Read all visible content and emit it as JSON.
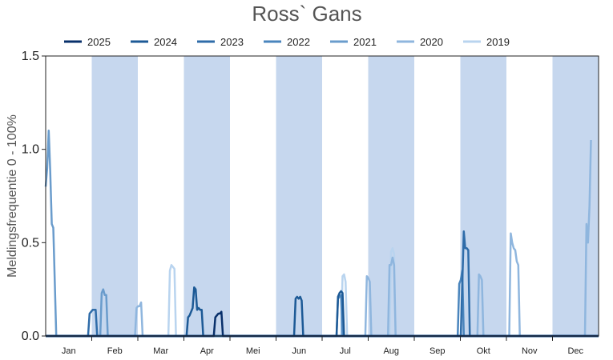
{
  "chart_data": {
    "type": "line",
    "title": "Ross` Gans",
    "ylabel": "Meldingsfrequentie 0 - 100%",
    "xlabel": "",
    "ylim": [
      0,
      1.5
    ],
    "yticks": [
      "0.0",
      "0.5",
      "1.0",
      "1.5"
    ],
    "months": [
      "Jan",
      "Feb",
      "Mar",
      "Apr",
      "Mei",
      "Jun",
      "Jul",
      "Aug",
      "Sep",
      "Okt",
      "Nov",
      "Dec"
    ],
    "shaded_months": [
      "Feb",
      "Apr",
      "Jun",
      "Aug",
      "Okt",
      "Dec"
    ],
    "shade_color": "#c6d7ee",
    "legend_position": "top",
    "grid": false,
    "series": [
      {
        "name": "2025",
        "color": "#08306b",
        "points": [
          [
            0,
            0
          ],
          [
            111,
            0
          ],
          [
            112,
            0.1
          ],
          [
            113,
            0.11
          ],
          [
            114,
            0.12
          ],
          [
            115,
            0.12
          ],
          [
            116,
            0.13
          ],
          [
            117,
            0.0
          ],
          [
            365,
            0
          ]
        ]
      },
      {
        "name": "2024",
        "color": "#1d5a96",
        "points": [
          [
            0,
            0
          ],
          [
            93,
            0
          ],
          [
            94,
            0.1
          ],
          [
            95,
            0.11
          ],
          [
            96,
            0.13
          ],
          [
            97,
            0.15
          ],
          [
            98,
            0.26
          ],
          [
            99,
            0.25
          ],
          [
            100,
            0.14
          ],
          [
            101,
            0.15
          ],
          [
            102,
            0.14
          ],
          [
            103,
            0.14
          ],
          [
            104,
            0.0
          ],
          [
            164,
            0
          ],
          [
            165,
            0.2
          ],
          [
            166,
            0.21
          ],
          [
            167,
            0.2
          ],
          [
            168,
            0.21
          ],
          [
            169,
            0.19
          ],
          [
            170,
            0.0
          ],
          [
            192,
            0
          ],
          [
            193,
            0.21
          ],
          [
            194,
            0.23
          ],
          [
            195,
            0.24
          ],
          [
            196,
            0.23
          ],
          [
            197,
            0.0
          ],
          [
            365,
            0
          ]
        ]
      },
      {
        "name": "2023",
        "color": "#2f6ca9",
        "points": [
          [
            0,
            0
          ],
          [
            28,
            0
          ],
          [
            29,
            0.12
          ],
          [
            30,
            0.13
          ],
          [
            31,
            0.14
          ],
          [
            32,
            0.14
          ],
          [
            33,
            0.14
          ],
          [
            34,
            0.0
          ],
          [
            274,
            0
          ],
          [
            275,
            0.28
          ],
          [
            276,
            0.56
          ],
          [
            277,
            0.47
          ],
          [
            278,
            0.47
          ],
          [
            279,
            0.46
          ],
          [
            280,
            0.0
          ],
          [
            365,
            0
          ]
        ]
      },
      {
        "name": "2022",
        "color": "#4a85bd",
        "points": [
          [
            0,
            0
          ],
          [
            192,
            0
          ],
          [
            193,
            0.2
          ],
          [
            194,
            0.21
          ],
          [
            195,
            0.22
          ],
          [
            196,
            0.0
          ],
          [
            272,
            0
          ],
          [
            273,
            0.28
          ],
          [
            274,
            0.3
          ],
          [
            275,
            0.35
          ],
          [
            276,
            0.0
          ],
          [
            365,
            0
          ]
        ]
      },
      {
        "name": "2021",
        "color": "#6a9ccc",
        "points": [
          [
            0,
            0.8
          ],
          [
            1,
            0.9
          ],
          [
            2,
            1.1
          ],
          [
            3,
            0.88
          ],
          [
            4,
            0.6
          ],
          [
            5,
            0.58
          ],
          [
            6,
            0.3
          ],
          [
            7,
            0.0
          ],
          [
            36,
            0
          ],
          [
            37,
            0.23
          ],
          [
            38,
            0.25
          ],
          [
            39,
            0.22
          ],
          [
            40,
            0.22
          ],
          [
            41,
            0.0
          ],
          [
            365,
            0
          ]
        ]
      },
      {
        "name": "2020",
        "color": "#8fb6de",
        "points": [
          [
            0,
            0
          ],
          [
            59,
            0
          ],
          [
            60,
            0.15
          ],
          [
            61,
            0.16
          ],
          [
            62,
            0.16
          ],
          [
            63,
            0.18
          ],
          [
            64,
            0.0
          ],
          [
            211,
            0
          ],
          [
            212,
            0.32
          ],
          [
            213,
            0.31
          ],
          [
            214,
            0.29
          ],
          [
            215,
            0.0
          ],
          [
            226,
            0
          ],
          [
            227,
            0.38
          ],
          [
            228,
            0.38
          ],
          [
            229,
            0.42
          ],
          [
            230,
            0.38
          ],
          [
            231,
            0.0
          ],
          [
            285,
            0
          ],
          [
            286,
            0.33
          ],
          [
            287,
            0.32
          ],
          [
            288,
            0.3
          ],
          [
            289,
            0.0
          ],
          [
            306,
            0
          ],
          [
            307,
            0.55
          ],
          [
            308,
            0.5
          ],
          [
            309,
            0.47
          ],
          [
            310,
            0.46
          ],
          [
            311,
            0.4
          ],
          [
            312,
            0.38
          ],
          [
            313,
            0.0
          ],
          [
            356,
            0
          ],
          [
            357,
            0.6
          ],
          [
            358,
            0.5
          ],
          [
            359,
            0.7
          ],
          [
            360,
            1.05
          ]
        ]
      },
      {
        "name": "2019",
        "color": "#b9d4ef",
        "points": [
          [
            0,
            0
          ],
          [
            81,
            0
          ],
          [
            82,
            0.35
          ],
          [
            83,
            0.38
          ],
          [
            84,
            0.37
          ],
          [
            85,
            0.36
          ],
          [
            86,
            0.0
          ],
          [
            195,
            0
          ],
          [
            196,
            0.32
          ],
          [
            197,
            0.33
          ],
          [
            198,
            0.29
          ],
          [
            199,
            0.0
          ],
          [
            227,
            0
          ],
          [
            228,
            0.45
          ],
          [
            229,
            0.47
          ],
          [
            230,
            0.44
          ],
          [
            231,
            0.0
          ],
          [
            365,
            0
          ]
        ]
      }
    ]
  }
}
